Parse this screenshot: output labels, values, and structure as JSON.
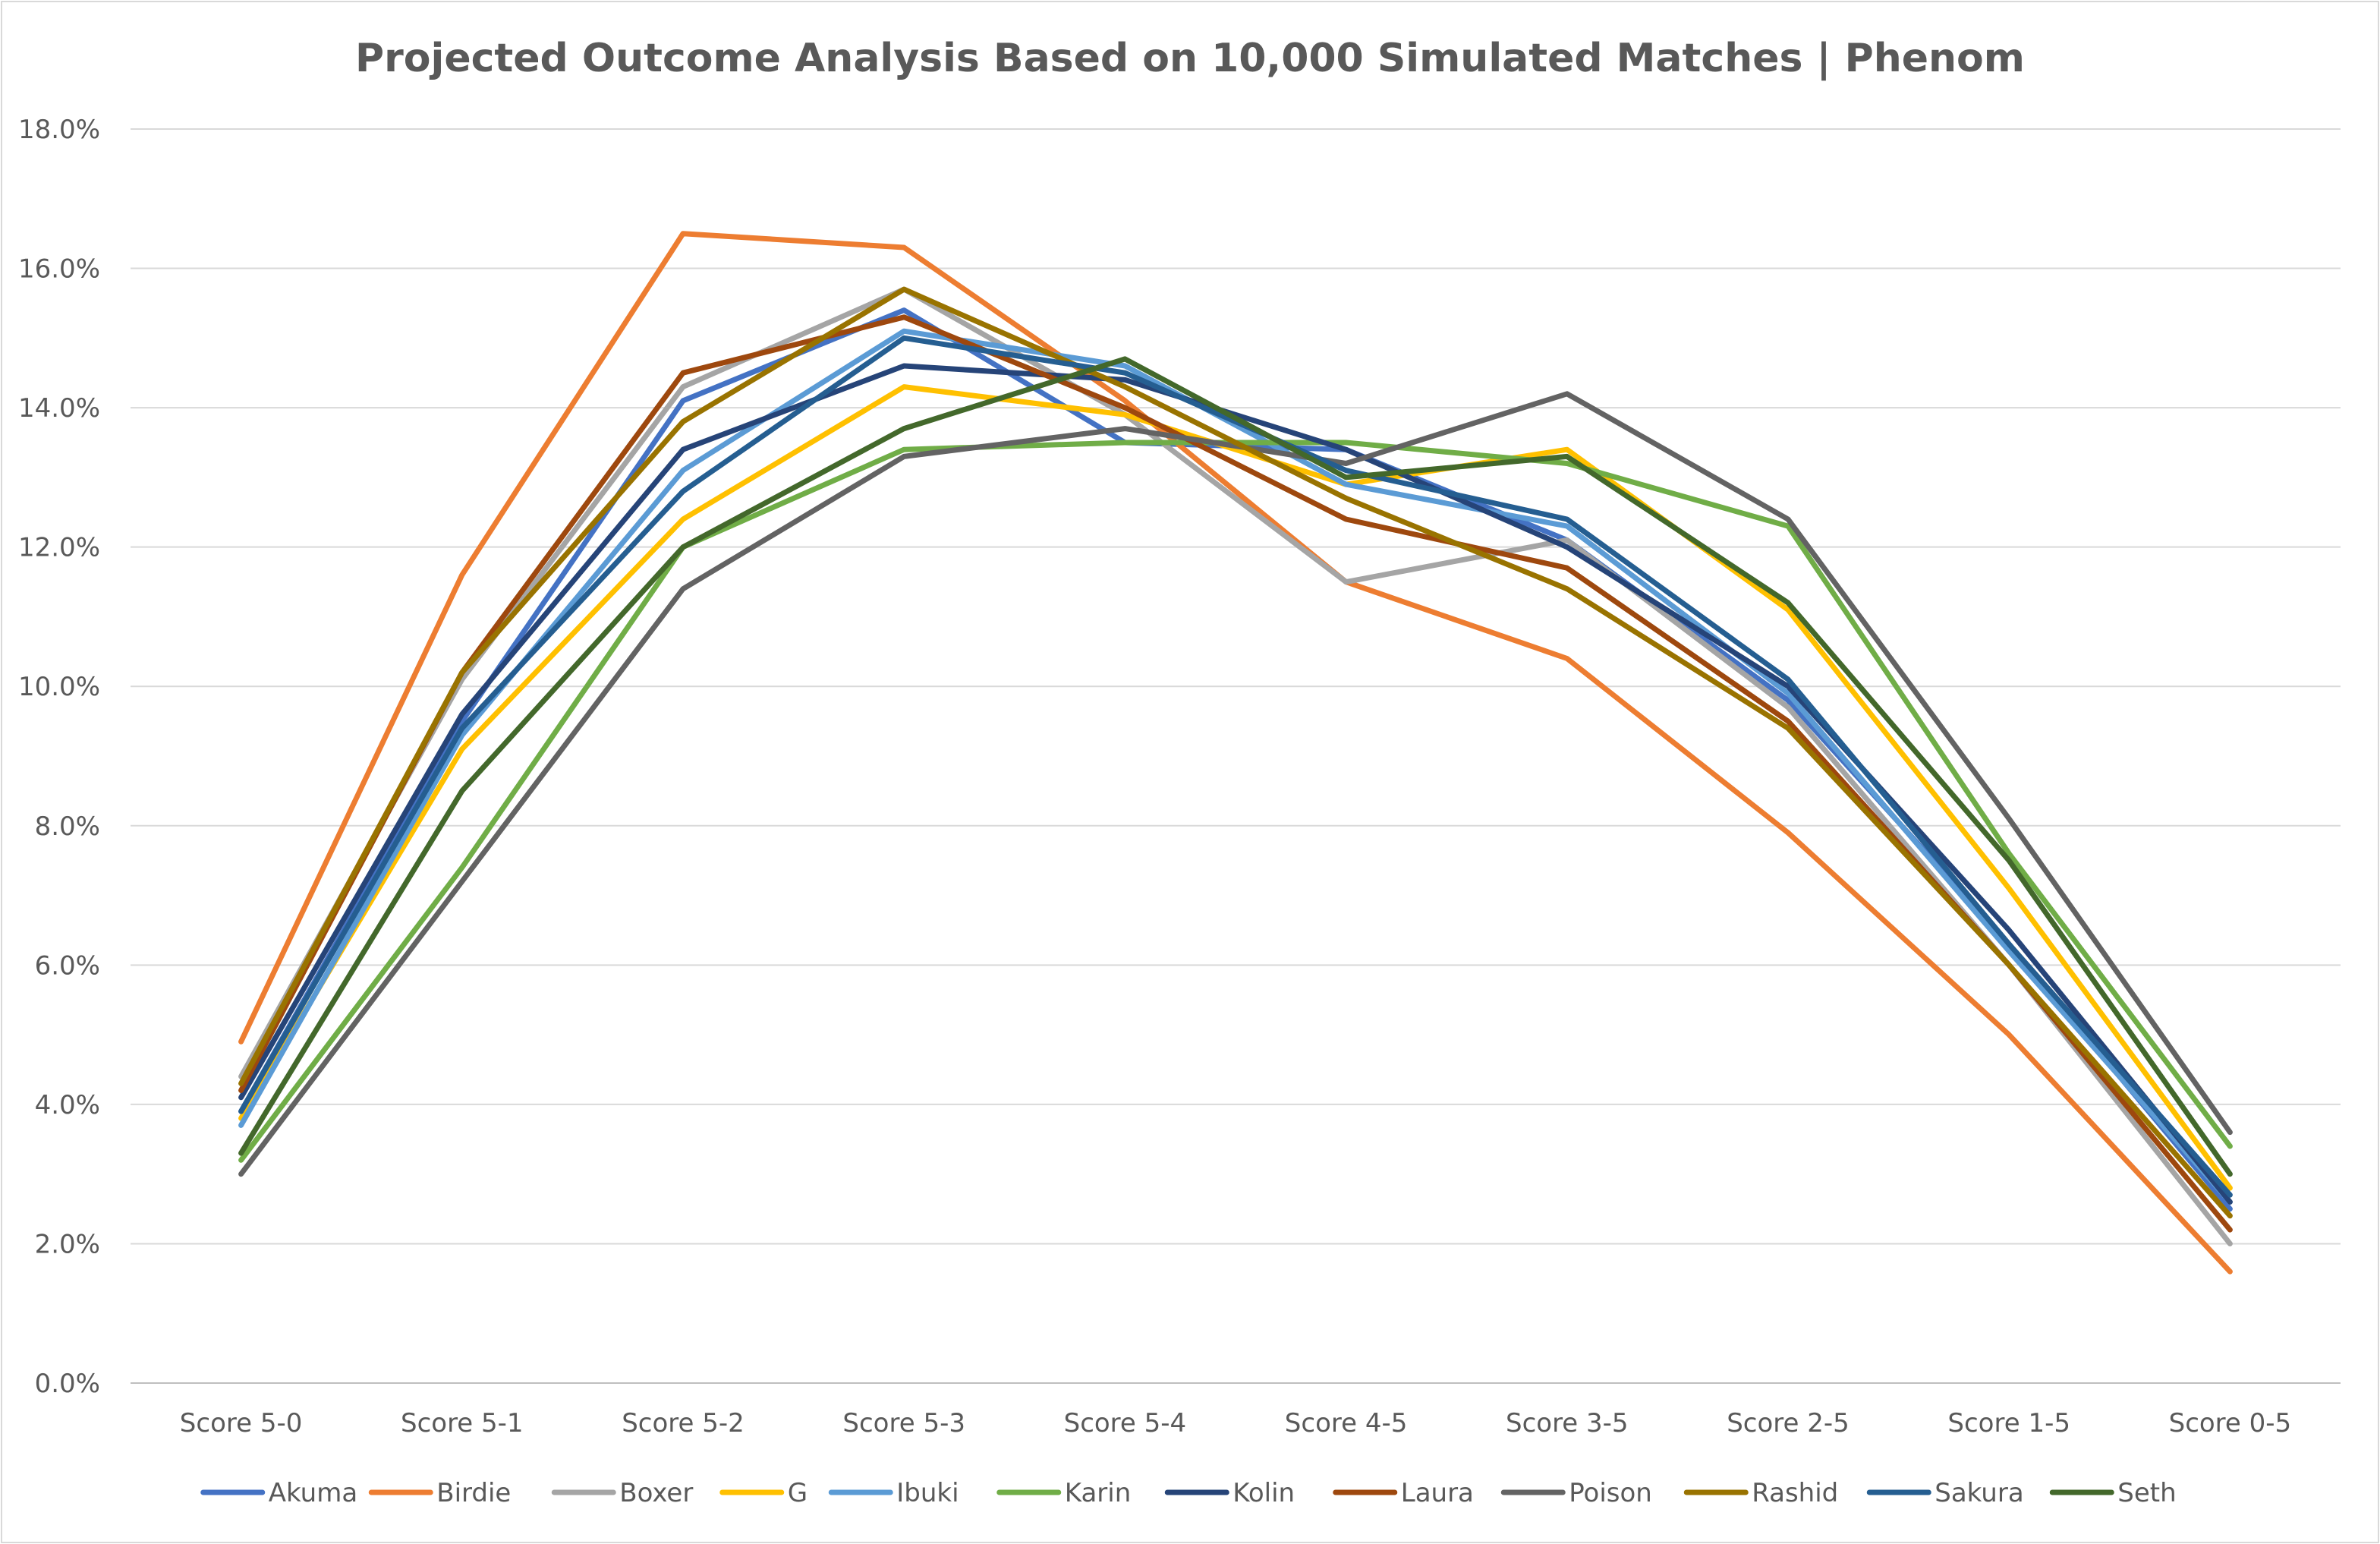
{
  "chart_data": {
    "type": "line",
    "title": "Projected Outcome Analysis Based on 10,000 Simulated Matches | Phenom",
    "xlabel": "",
    "ylabel": "",
    "categories": [
      "Score 5-0",
      "Score 5-1",
      "Score 5-2",
      "Score 5-3",
      "Score 5-4",
      "Score 4-5",
      "Score 3-5",
      "Score 2-5",
      "Score 1-5",
      "Score 0-5"
    ],
    "ylim": [
      0,
      18
    ],
    "yticks": [
      0,
      2,
      4,
      6,
      8,
      10,
      12,
      14,
      16,
      18
    ],
    "ytick_labels": [
      "0.0%",
      "2.0%",
      "4.0%",
      "6.0%",
      "8.0%",
      "10.0%",
      "12.0%",
      "14.0%",
      "16.0%",
      "18.0%"
    ],
    "grid": true,
    "legend_position": "bottom",
    "series": [
      {
        "name": "Akuma",
        "color": "#4472C4",
        "values": [
          3.9,
          9.5,
          14.1,
          15.4,
          13.5,
          13.4,
          12.1,
          9.8,
          6.3,
          2.5
        ]
      },
      {
        "name": "Birdie",
        "color": "#ED7D31",
        "values": [
          4.9,
          11.6,
          16.5,
          16.3,
          14.1,
          11.5,
          10.4,
          7.9,
          5.0,
          1.6
        ]
      },
      {
        "name": "Boxer",
        "color": "#A5A5A5",
        "values": [
          4.4,
          10.1,
          14.3,
          15.7,
          13.9,
          11.5,
          12.1,
          9.7,
          6.0,
          2.0
        ]
      },
      {
        "name": "G",
        "color": "#FFC000",
        "values": [
          3.8,
          9.1,
          12.4,
          14.3,
          13.9,
          12.9,
          13.4,
          11.1,
          7.1,
          2.8
        ]
      },
      {
        "name": "Ibuki",
        "color": "#5B9BD5",
        "values": [
          3.7,
          9.3,
          13.1,
          15.1,
          14.6,
          12.9,
          12.3,
          9.9,
          6.2,
          2.6
        ]
      },
      {
        "name": "Karin",
        "color": "#70AD47",
        "values": [
          3.2,
          7.4,
          12.0,
          13.4,
          13.5,
          13.5,
          13.2,
          12.3,
          7.6,
          3.4
        ]
      },
      {
        "name": "Kolin",
        "color": "#264478",
        "values": [
          4.1,
          9.6,
          13.4,
          14.6,
          14.4,
          13.4,
          12.0,
          10.0,
          6.5,
          2.6
        ]
      },
      {
        "name": "Laura",
        "color": "#9E480E",
        "values": [
          4.2,
          10.2,
          14.5,
          15.3,
          14.0,
          12.4,
          11.7,
          9.5,
          6.0,
          2.2
        ]
      },
      {
        "name": "Poison",
        "color": "#636363",
        "values": [
          3.0,
          7.2,
          11.4,
          13.3,
          13.7,
          13.2,
          14.2,
          12.4,
          8.1,
          3.6
        ]
      },
      {
        "name": "Rashid",
        "color": "#997300",
        "values": [
          4.3,
          10.2,
          13.8,
          15.7,
          14.3,
          12.7,
          11.4,
          9.4,
          6.0,
          2.4
        ]
      },
      {
        "name": "Sakura",
        "color": "#255E91",
        "values": [
          3.9,
          9.4,
          12.8,
          15.0,
          14.5,
          13.1,
          12.4,
          10.1,
          6.3,
          2.7
        ]
      },
      {
        "name": "Seth",
        "color": "#43682B",
        "values": [
          3.3,
          8.5,
          12.0,
          13.7,
          14.7,
          13.0,
          13.3,
          11.2,
          7.5,
          3.0
        ]
      }
    ]
  }
}
